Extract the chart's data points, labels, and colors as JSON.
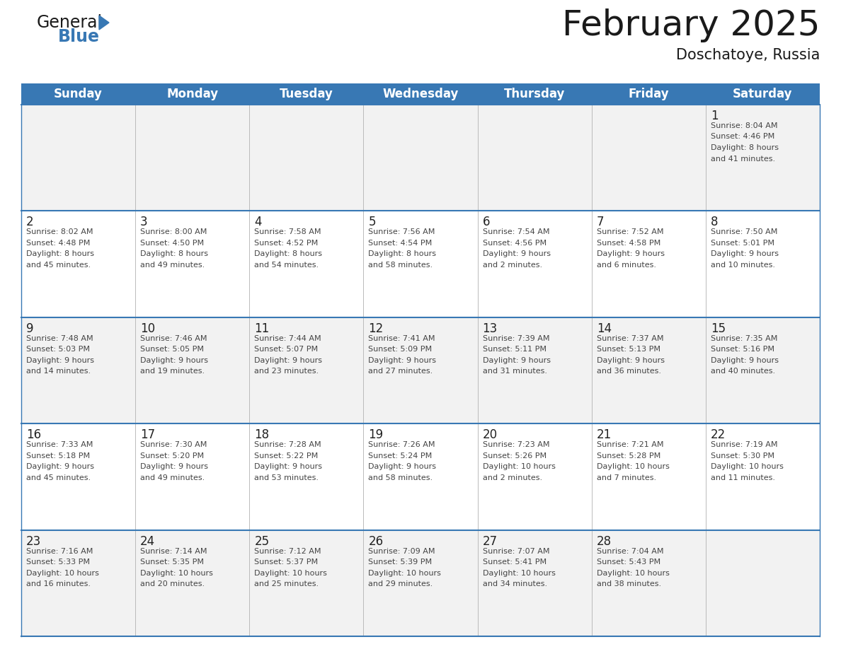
{
  "title": "February 2025",
  "subtitle": "Doschatoye, Russia",
  "header_color": "#3878b4",
  "header_text_color": "#ffffff",
  "row_bg_even": "#f2f2f2",
  "row_bg_odd": "#ffffff",
  "text_color": "#222222",
  "info_text_color": "#444444",
  "line_color": "#3878b4",
  "days_of_week": [
    "Sunday",
    "Monday",
    "Tuesday",
    "Wednesday",
    "Thursday",
    "Friday",
    "Saturday"
  ],
  "calendar_data": [
    [
      {
        "day": "",
        "info": ""
      },
      {
        "day": "",
        "info": ""
      },
      {
        "day": "",
        "info": ""
      },
      {
        "day": "",
        "info": ""
      },
      {
        "day": "",
        "info": ""
      },
      {
        "day": "",
        "info": ""
      },
      {
        "day": "1",
        "info": "Sunrise: 8:04 AM\nSunset: 4:46 PM\nDaylight: 8 hours\nand 41 minutes."
      }
    ],
    [
      {
        "day": "2",
        "info": "Sunrise: 8:02 AM\nSunset: 4:48 PM\nDaylight: 8 hours\nand 45 minutes."
      },
      {
        "day": "3",
        "info": "Sunrise: 8:00 AM\nSunset: 4:50 PM\nDaylight: 8 hours\nand 49 minutes."
      },
      {
        "day": "4",
        "info": "Sunrise: 7:58 AM\nSunset: 4:52 PM\nDaylight: 8 hours\nand 54 minutes."
      },
      {
        "day": "5",
        "info": "Sunrise: 7:56 AM\nSunset: 4:54 PM\nDaylight: 8 hours\nand 58 minutes."
      },
      {
        "day": "6",
        "info": "Sunrise: 7:54 AM\nSunset: 4:56 PM\nDaylight: 9 hours\nand 2 minutes."
      },
      {
        "day": "7",
        "info": "Sunrise: 7:52 AM\nSunset: 4:58 PM\nDaylight: 9 hours\nand 6 minutes."
      },
      {
        "day": "8",
        "info": "Sunrise: 7:50 AM\nSunset: 5:01 PM\nDaylight: 9 hours\nand 10 minutes."
      }
    ],
    [
      {
        "day": "9",
        "info": "Sunrise: 7:48 AM\nSunset: 5:03 PM\nDaylight: 9 hours\nand 14 minutes."
      },
      {
        "day": "10",
        "info": "Sunrise: 7:46 AM\nSunset: 5:05 PM\nDaylight: 9 hours\nand 19 minutes."
      },
      {
        "day": "11",
        "info": "Sunrise: 7:44 AM\nSunset: 5:07 PM\nDaylight: 9 hours\nand 23 minutes."
      },
      {
        "day": "12",
        "info": "Sunrise: 7:41 AM\nSunset: 5:09 PM\nDaylight: 9 hours\nand 27 minutes."
      },
      {
        "day": "13",
        "info": "Sunrise: 7:39 AM\nSunset: 5:11 PM\nDaylight: 9 hours\nand 31 minutes."
      },
      {
        "day": "14",
        "info": "Sunrise: 7:37 AM\nSunset: 5:13 PM\nDaylight: 9 hours\nand 36 minutes."
      },
      {
        "day": "15",
        "info": "Sunrise: 7:35 AM\nSunset: 5:16 PM\nDaylight: 9 hours\nand 40 minutes."
      }
    ],
    [
      {
        "day": "16",
        "info": "Sunrise: 7:33 AM\nSunset: 5:18 PM\nDaylight: 9 hours\nand 45 minutes."
      },
      {
        "day": "17",
        "info": "Sunrise: 7:30 AM\nSunset: 5:20 PM\nDaylight: 9 hours\nand 49 minutes."
      },
      {
        "day": "18",
        "info": "Sunrise: 7:28 AM\nSunset: 5:22 PM\nDaylight: 9 hours\nand 53 minutes."
      },
      {
        "day": "19",
        "info": "Sunrise: 7:26 AM\nSunset: 5:24 PM\nDaylight: 9 hours\nand 58 minutes."
      },
      {
        "day": "20",
        "info": "Sunrise: 7:23 AM\nSunset: 5:26 PM\nDaylight: 10 hours\nand 2 minutes."
      },
      {
        "day": "21",
        "info": "Sunrise: 7:21 AM\nSunset: 5:28 PM\nDaylight: 10 hours\nand 7 minutes."
      },
      {
        "day": "22",
        "info": "Sunrise: 7:19 AM\nSunset: 5:30 PM\nDaylight: 10 hours\nand 11 minutes."
      }
    ],
    [
      {
        "day": "23",
        "info": "Sunrise: 7:16 AM\nSunset: 5:33 PM\nDaylight: 10 hours\nand 16 minutes."
      },
      {
        "day": "24",
        "info": "Sunrise: 7:14 AM\nSunset: 5:35 PM\nDaylight: 10 hours\nand 20 minutes."
      },
      {
        "day": "25",
        "info": "Sunrise: 7:12 AM\nSunset: 5:37 PM\nDaylight: 10 hours\nand 25 minutes."
      },
      {
        "day": "26",
        "info": "Sunrise: 7:09 AM\nSunset: 5:39 PM\nDaylight: 10 hours\nand 29 minutes."
      },
      {
        "day": "27",
        "info": "Sunrise: 7:07 AM\nSunset: 5:41 PM\nDaylight: 10 hours\nand 34 minutes."
      },
      {
        "day": "28",
        "info": "Sunrise: 7:04 AM\nSunset: 5:43 PM\nDaylight: 10 hours\nand 38 minutes."
      },
      {
        "day": "",
        "info": ""
      }
    ]
  ]
}
